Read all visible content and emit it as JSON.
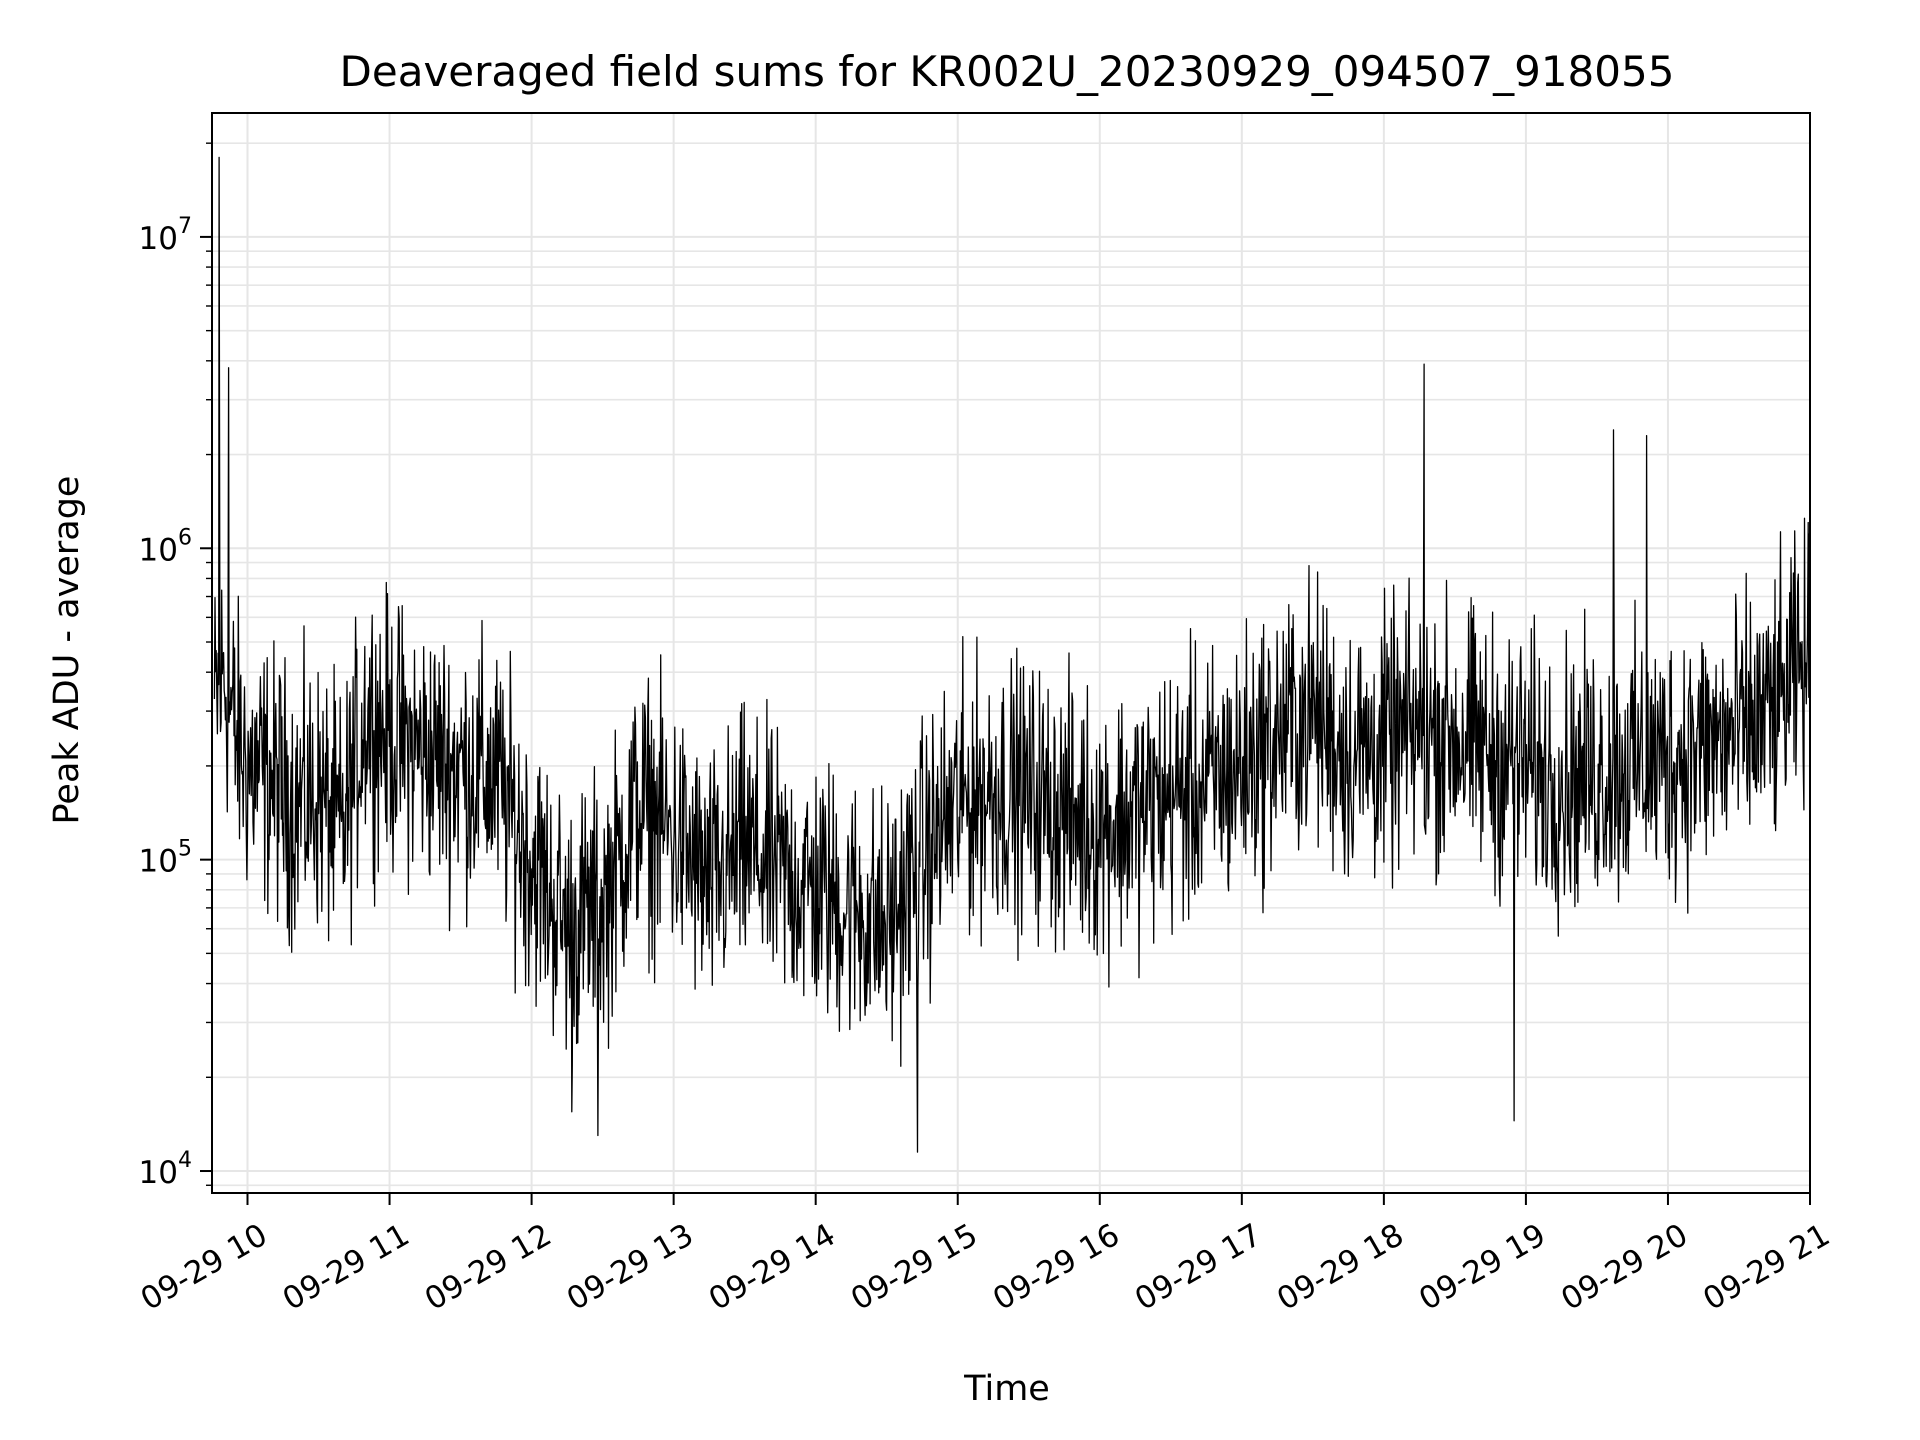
{
  "chart_data": {
    "type": "line",
    "title": "Deaveraged field sums for KR002U_20230929_094507_918055",
    "xlabel": "Time",
    "ylabel": "Peak ADU - average",
    "y_scale": "log",
    "ylim": [
      8500,
      25000000
    ],
    "xlim": [
      "2023-09-29 09:45",
      "2023-09-29 21:00"
    ],
    "grid": true,
    "x_ticks": [
      "09-29 10",
      "09-29 11",
      "09-29 12",
      "09-29 13",
      "09-29 14",
      "09-29 15",
      "09-29 16",
      "09-29 17",
      "09-29 18",
      "09-29 19",
      "09-29 20",
      "09-29 21"
    ],
    "y_ticks": [
      {
        "base": "10",
        "exp": "4",
        "value": 10000
      },
      {
        "base": "10",
        "exp": "5",
        "value": 100000
      },
      {
        "base": "10",
        "exp": "6",
        "value": 1000000
      },
      {
        "base": "10",
        "exp": "7",
        "value": 10000000
      }
    ],
    "series_color": "#000000",
    "series": [
      {
        "x": [
          "2023-09-29 09:46",
          "2023-09-29 09:50",
          "2023-09-29 09:55",
          "2023-09-29 10:00",
          "2023-09-29 10:10",
          "2023-09-29 10:20",
          "2023-09-29 10:30",
          "2023-09-29 10:40",
          "2023-09-29 10:50",
          "2023-09-29 11:00",
          "2023-09-29 11:15",
          "2023-09-29 11:30",
          "2023-09-29 11:45",
          "2023-09-29 12:00",
          "2023-09-29 12:15",
          "2023-09-29 12:30",
          "2023-09-29 12:45",
          "2023-09-29 13:00",
          "2023-09-29 13:15",
          "2023-09-29 13:30",
          "2023-09-29 13:45",
          "2023-09-29 14:00",
          "2023-09-29 14:15",
          "2023-09-29 14:30",
          "2023-09-29 14:45",
          "2023-09-29 15:00",
          "2023-09-29 15:15",
          "2023-09-29 15:30",
          "2023-09-29 15:45",
          "2023-09-29 16:00",
          "2023-09-29 16:15",
          "2023-09-29 16:30",
          "2023-09-29 16:45",
          "2023-09-29 17:00",
          "2023-09-29 17:15",
          "2023-09-29 17:30",
          "2023-09-29 17:45",
          "2023-09-29 18:00",
          "2023-09-29 18:15",
          "2023-09-29 18:30",
          "2023-09-29 18:45",
          "2023-09-29 19:00",
          "2023-09-29 19:15",
          "2023-09-29 19:30",
          "2023-09-29 19:45",
          "2023-09-29 20:00",
          "2023-09-29 20:15",
          "2023-09-29 20:30",
          "2023-09-29 20:45",
          "2023-09-29 21:00"
        ],
        "values": [
          300000,
          400000,
          250000,
          200000,
          180000,
          150000,
          160000,
          120000,
          300000,
          250000,
          220000,
          200000,
          180000,
          100000,
          60000,
          70000,
          150000,
          120000,
          80000,
          110000,
          90000,
          80000,
          70000,
          60000,
          100000,
          150000,
          170000,
          160000,
          140000,
          130000,
          140000,
          160000,
          170000,
          200000,
          250000,
          300000,
          220000,
          230000,
          260000,
          250000,
          220000,
          200000,
          180000,
          190000,
          200000,
          210000,
          230000,
          250000,
          300000,
          450000
        ]
      }
    ],
    "spikes": [
      {
        "x": "2023-09-29 09:48",
        "value": 18000000
      },
      {
        "x": "2023-09-29 09:52",
        "value": 3800000
      },
      {
        "x": "2023-09-29 18:17",
        "value": 3900000
      },
      {
        "x": "2023-09-29 19:37",
        "value": 2400000
      },
      {
        "x": "2023-09-29 19:51",
        "value": 2300000
      },
      {
        "x": "2023-09-29 12:28",
        "value": 13000
      },
      {
        "x": "2023-09-29 14:43",
        "value": 11500
      },
      {
        "x": "2023-09-29 18:55",
        "value": 14500
      },
      {
        "x": "2023-09-29 12:17",
        "value": 15500
      }
    ]
  }
}
